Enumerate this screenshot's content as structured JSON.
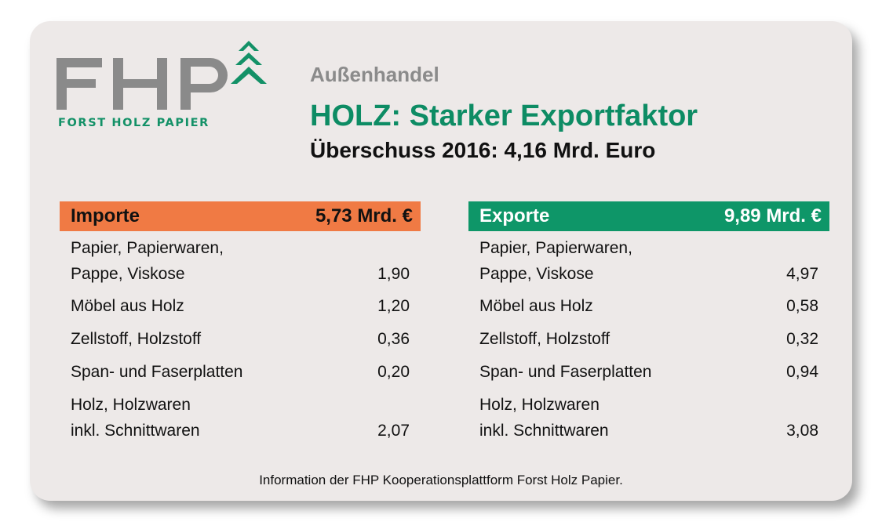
{
  "logo": {
    "letters": "FHP",
    "subtitle": "FORST HOLZ PAPIER"
  },
  "header": {
    "kicker": "Außenhandel",
    "title": "HOLZ: Starker Exportfaktor",
    "subtitle": "Überschuss 2016: 4,16 Mrd. Euro"
  },
  "colors": {
    "imports": "#f07a44",
    "exports": "#0e9668",
    "title": "#0d8c64",
    "logo_grey": "#8a8a8a"
  },
  "chart_data": {
    "type": "table",
    "columns": [
      {
        "name": "Importe",
        "total": "5,73 Mrd. €",
        "rows": [
          {
            "label_lines": [
              "Papier, Papierwaren,",
              "Pappe, Viskose"
            ],
            "value": "1,90"
          },
          {
            "label_lines": [
              "Möbel aus Holz"
            ],
            "value": "1,20"
          },
          {
            "label_lines": [
              "Zellstoff, Holzstoff"
            ],
            "value": "0,36"
          },
          {
            "label_lines": [
              "Span- und Faserplatten"
            ],
            "value": "0,20"
          },
          {
            "label_lines": [
              "Holz, Holzwaren",
              "inkl. Schnittwaren"
            ],
            "value": "2,07"
          }
        ]
      },
      {
        "name": "Exporte",
        "total": "9,89 Mrd. €",
        "rows": [
          {
            "label_lines": [
              "Papier, Papierwaren,",
              "Pappe, Viskose"
            ],
            "value": "4,97"
          },
          {
            "label_lines": [
              "Möbel aus Holz"
            ],
            "value": "0,58"
          },
          {
            "label_lines": [
              "Zellstoff, Holzstoff"
            ],
            "value": "0,32"
          },
          {
            "label_lines": [
              "Span- und Faserplatten"
            ],
            "value": "0,94"
          },
          {
            "label_lines": [
              "Holz, Holzwaren",
              "inkl. Schnittwaren"
            ],
            "value": "3,08"
          }
        ]
      }
    ]
  },
  "footer": "Information der FHP Kooperationsplattform Forst Holz Papier."
}
